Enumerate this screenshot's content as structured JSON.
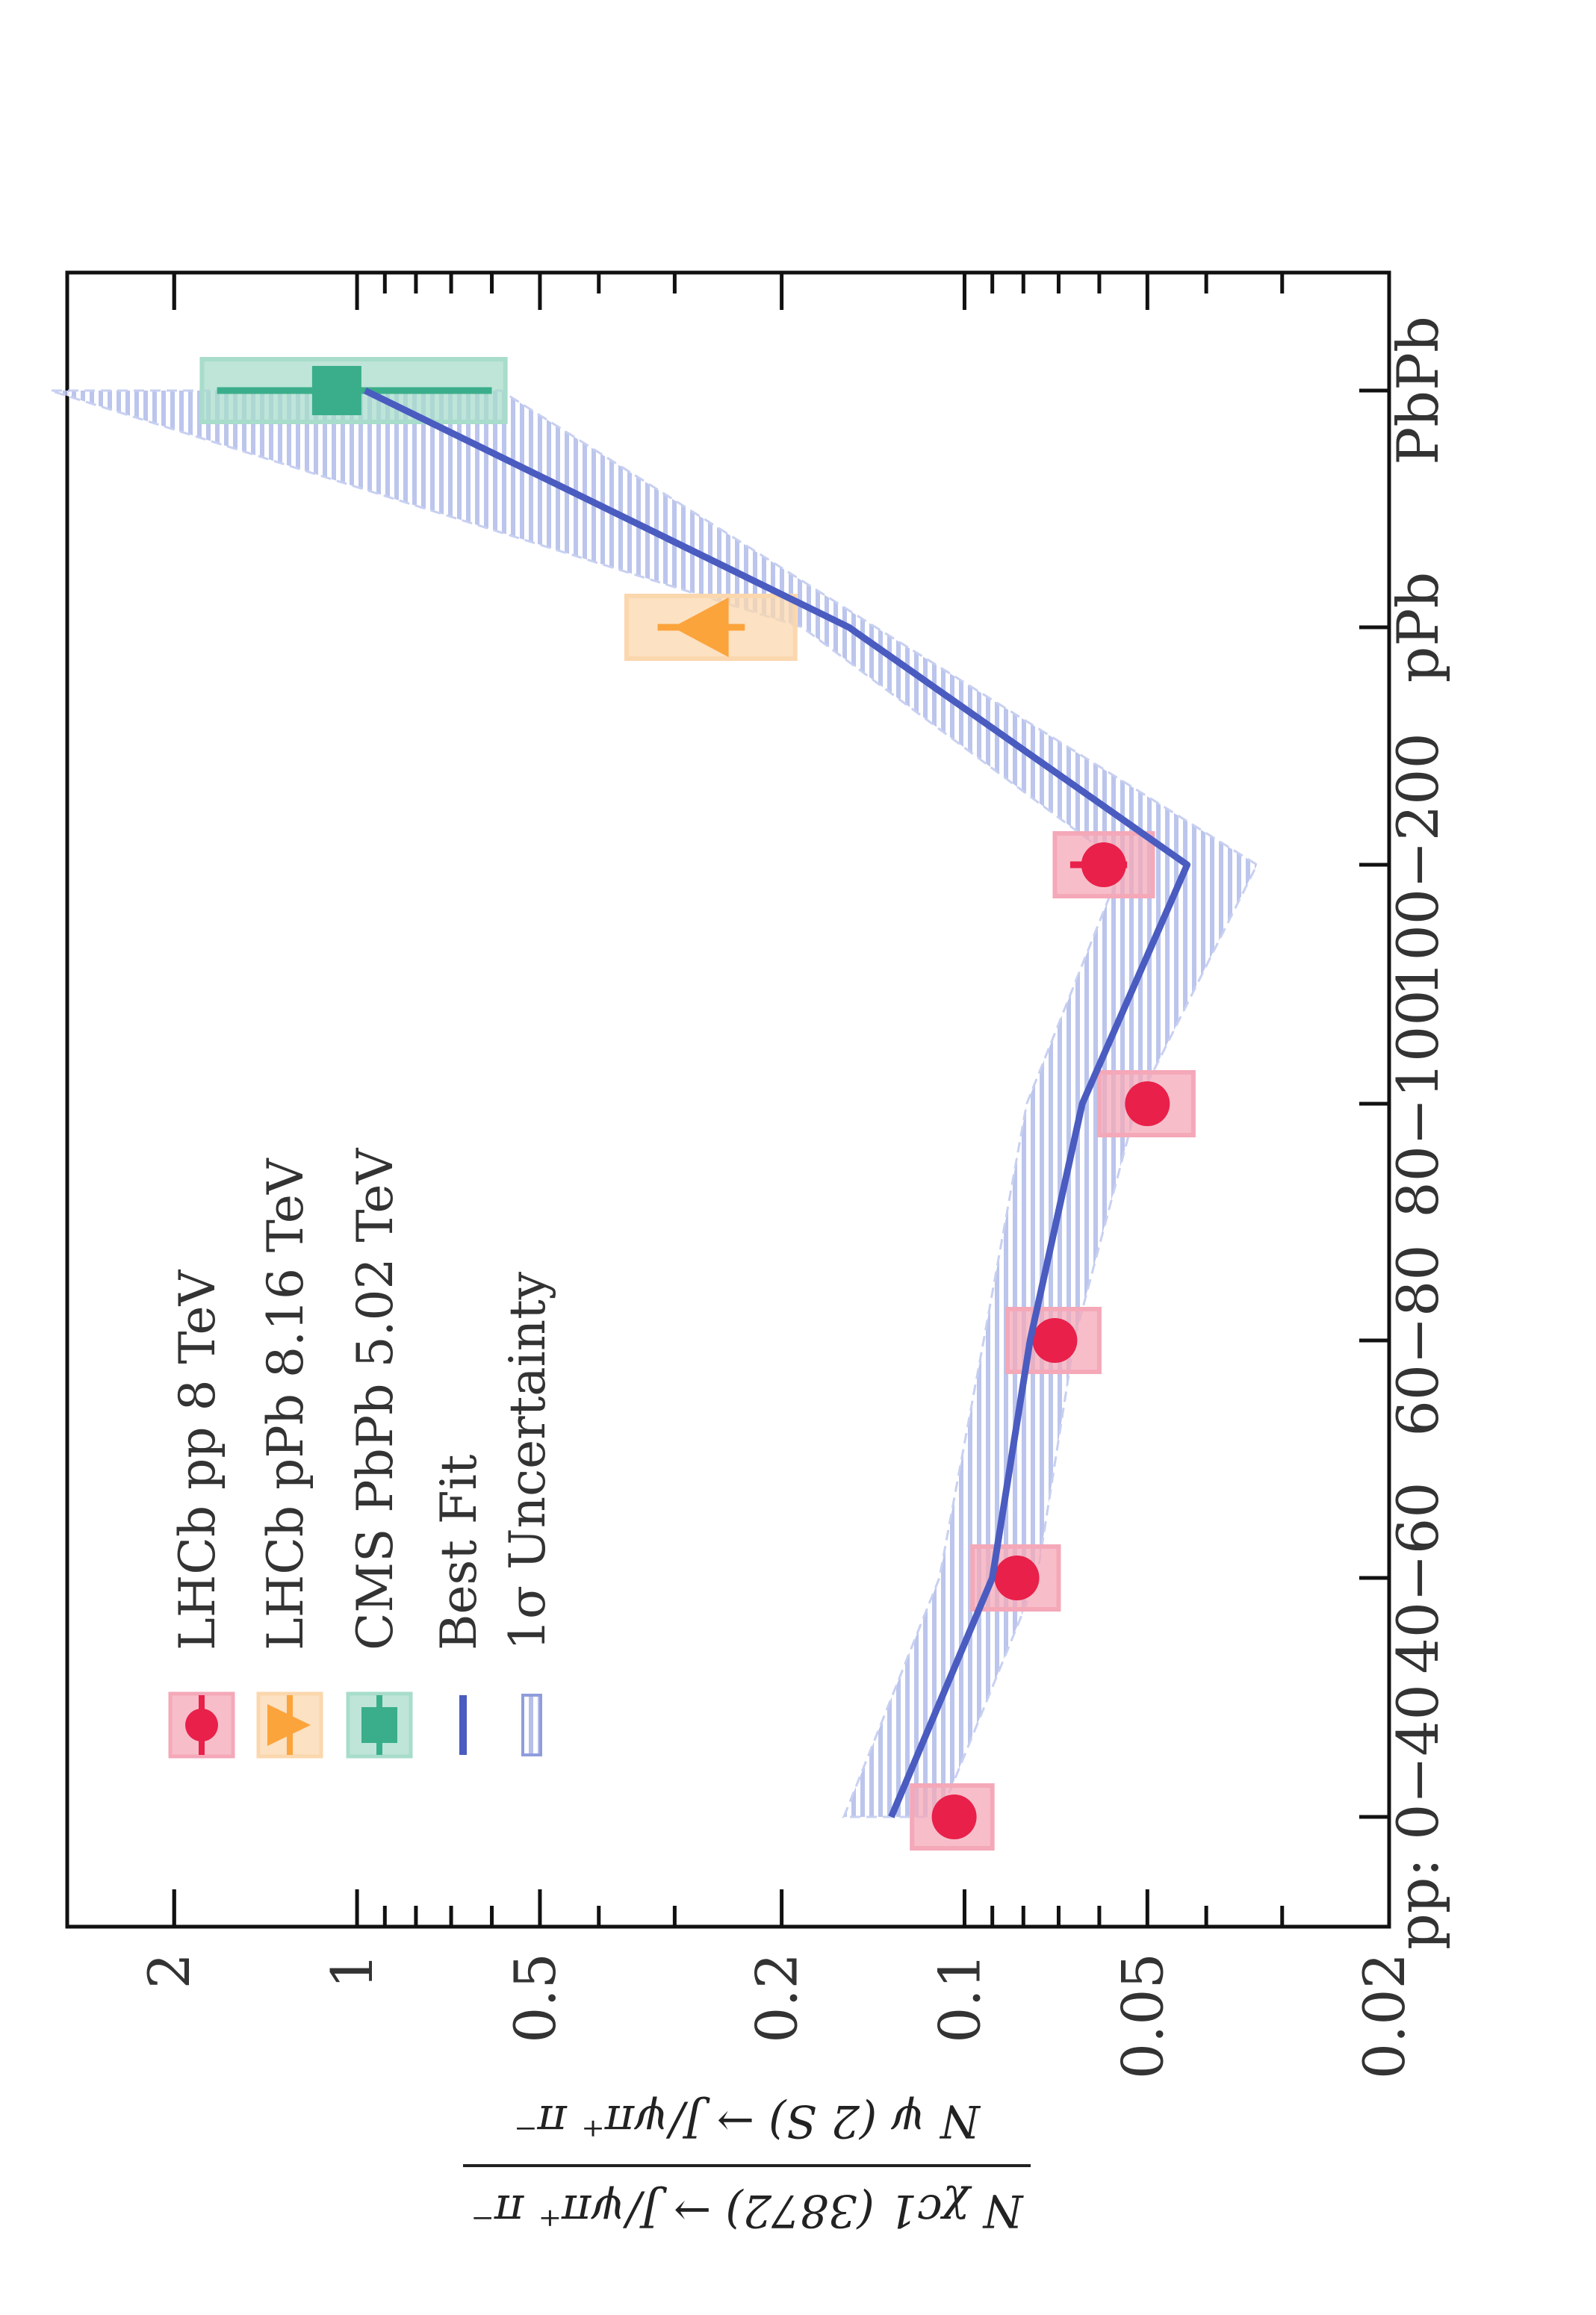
{
  "chart_data": {
    "type": "scatter",
    "title": "",
    "xlabel": "",
    "ylabel": {
      "numerator": "N χc1 (3872) → J/ψπ⁺ π⁻",
      "denominator": "N ψ (2 S) → J/ψπ⁺ π⁻"
    },
    "y_scale": "log",
    "ylim": [
      0.02,
      3
    ],
    "y_ticks": [
      0.02,
      0.05,
      0.1,
      0.2,
      0.5,
      1,
      2
    ],
    "y_tick_labels": [
      "0.02",
      "0.05",
      "0.1",
      "0.2",
      "0.5",
      "1",
      "2"
    ],
    "categories": [
      "pp: 0−40",
      "40−60",
      "60−80",
      "80−100",
      "100−200",
      "pPb",
      "PbPb"
    ],
    "legend_position": "upper-left",
    "legend": [
      {
        "name": "LHCb pp 8 TeV",
        "marker": "circle"
      },
      {
        "name": "LHCb pPb 8.16 TeV",
        "marker": "triangle"
      },
      {
        "name": "CMS PbPb 5.02 TeV",
        "marker": "square"
      },
      {
        "name": "Best Fit",
        "marker": "line"
      },
      {
        "name": "1σ Uncertainty",
        "marker": "band"
      }
    ],
    "series": [
      {
        "name": "LHCb pp 8 TeV",
        "color": "#e8204a",
        "box_color": "#f4a8b8",
        "marker": "circle",
        "points": [
          {
            "x": "pp: 0−40",
            "y": 0.104,
            "err_lo": 0.104,
            "err_hi": 0.104,
            "sys_lo": 0.09,
            "sys_hi": 0.122
          },
          {
            "x": "40−60",
            "y": 0.082,
            "err_lo": 0.0815,
            "err_hi": 0.0825,
            "sys_lo": 0.07,
            "sys_hi": 0.097
          },
          {
            "x": "60−80",
            "y": 0.071,
            "err_lo": 0.068,
            "err_hi": 0.074,
            "sys_lo": 0.06,
            "sys_hi": 0.085
          },
          {
            "x": "80−100",
            "y": 0.05,
            "err_lo": 0.047,
            "err_hi": 0.054,
            "sys_lo": 0.042,
            "sys_hi": 0.06
          },
          {
            "x": "100−200",
            "y": 0.059,
            "err_lo": 0.054,
            "err_hi": 0.067,
            "sys_lo": 0.049,
            "sys_hi": 0.071
          }
        ]
      },
      {
        "name": "LHCb pPb 8.16 TeV",
        "color": "#fba43c",
        "box_color": "#fbd7ae",
        "marker": "triangle",
        "points": [
          {
            "x": "pPb",
            "y": 0.27,
            "err_lo": 0.23,
            "err_hi": 0.32,
            "sys_lo": 0.19,
            "sys_hi": 0.36
          }
        ]
      },
      {
        "name": "CMS PbPb 5.02 TeV",
        "color": "#3aae8a",
        "box_color": "#a8dccb",
        "marker": "square",
        "points": [
          {
            "x": "PbPb",
            "y": 1.08,
            "err_lo": 0.6,
            "err_hi": 1.7,
            "sys_lo": 0.57,
            "sys_hi": 1.8
          }
        ]
      },
      {
        "name": "Best Fit",
        "color": "#4a5cc0",
        "type": "line",
        "x": [
          "pp: 0−40",
          "40−60",
          "60−80",
          "80−100",
          "100−200",
          "pPb",
          "PbPb"
        ],
        "values": [
          0.132,
          0.09,
          0.078,
          0.064,
          0.043,
          0.155,
          0.97
        ]
      },
      {
        "name": "1σ Uncertainty",
        "color": "#a9b4e6",
        "type": "band",
        "x": [
          "pp: 0−40",
          "40−60",
          "60−80",
          "80−100",
          "100−200",
          "pPb",
          "PbPb"
        ],
        "lower": [
          0.11,
          0.076,
          0.066,
          0.052,
          0.033,
          0.14,
          0.58
        ],
        "upper": [
          0.158,
          0.11,
          0.093,
          0.079,
          0.055,
          0.185,
          3.2
        ]
      }
    ]
  }
}
